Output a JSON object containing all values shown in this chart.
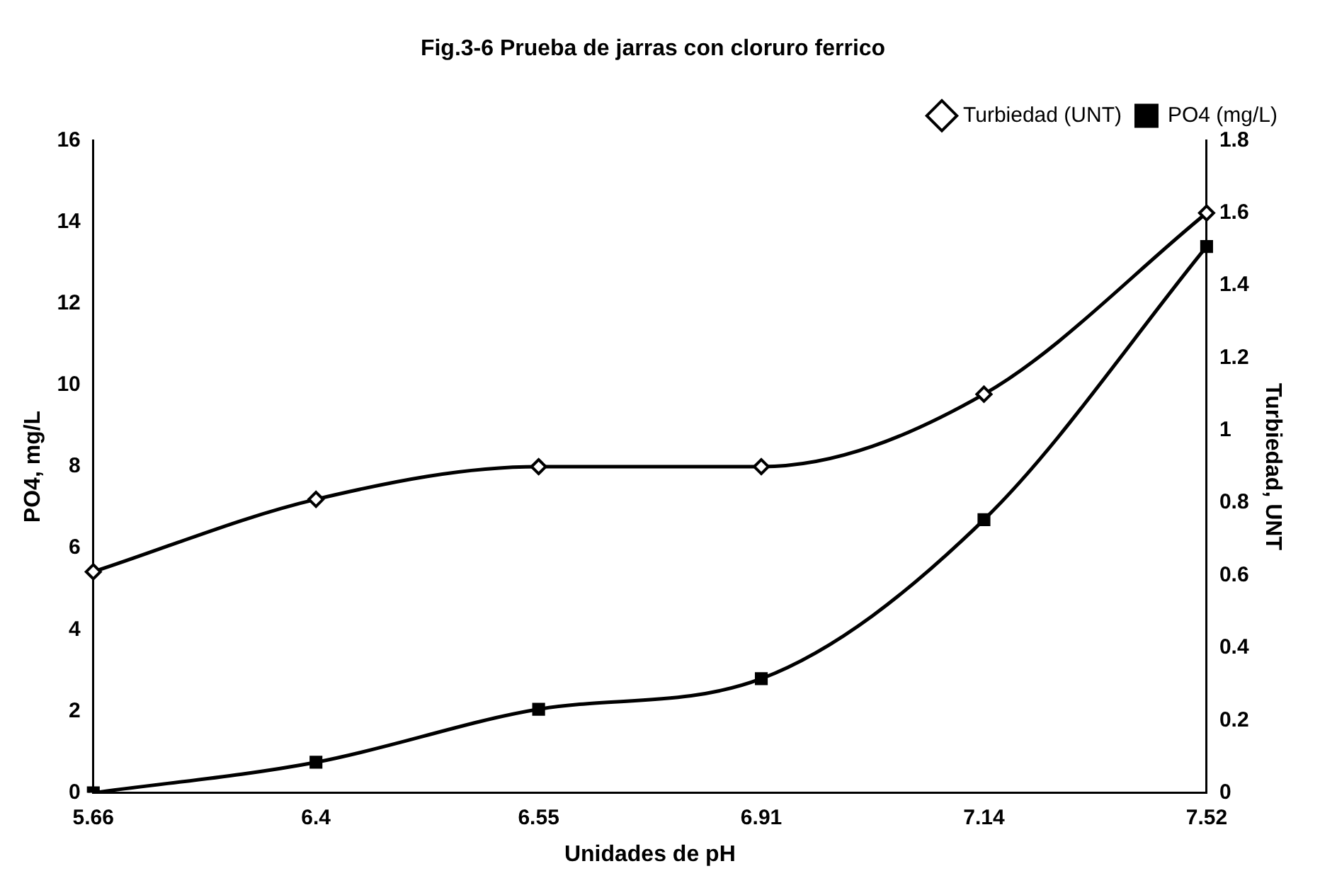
{
  "chart_data": {
    "type": "line",
    "title": "Fig.3-6 Prueba de jarras con cloruro ferrico",
    "xlabel": "Unidades de pH",
    "ylabel": "PO4, mg/L",
    "y2label": "Turbiedad, UNT",
    "categories": [
      "5.66",
      "6.4",
      "6.55",
      "6.91",
      "7.14",
      "7.52"
    ],
    "series": [
      {
        "name": "Turbiedad (UNT)",
        "color": "#000000",
        "axis": "y2",
        "marker": "diamond",
        "values": [
          0.61,
          0.81,
          0.9,
          0.9,
          1.1,
          1.6
        ]
      },
      {
        "name": "PO4 (mg/L)",
        "color": "#000000",
        "marker": "square",
        "values": [
          0,
          0.75,
          2.05,
          2.8,
          6.7,
          13.4
        ]
      }
    ],
    "ylim": [
      0,
      16
    ],
    "yticks": [
      0,
      2,
      4,
      6,
      8,
      10,
      12,
      14,
      16
    ],
    "y2lim": [
      0,
      1.8
    ],
    "y2ticks": [
      0,
      0.2,
      0.4,
      0.6,
      0.8,
      1,
      1.2,
      1.4,
      1.6,
      1.8
    ],
    "grid": false,
    "legend": "top right"
  }
}
